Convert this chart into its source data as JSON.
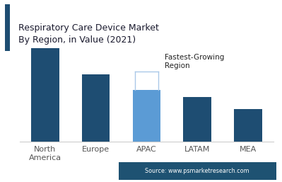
{
  "title_line1": "Respiratory Care Device Market",
  "title_line2": "By Region, in Value (2021)",
  "categories": [
    "North\nAmerica",
    "Europe",
    "APAC",
    "LATAM",
    "MEA"
  ],
  "values": [
    100,
    72,
    55,
    48,
    35
  ],
  "bar_colors": [
    "#1e4d72",
    "#1e4d72",
    "#5b9bd5",
    "#1e4d72",
    "#1e4d72"
  ],
  "annotation_text": "Fastest-Growing\nRegion",
  "annotation_bar_index": 2,
  "source_text": "Source: www.psmarketresearch.com",
  "background_color": "#ffffff",
  "title_accent_color": "#1e4d72",
  "source_bg_color": "#1e5272",
  "source_text_color": "#ffffff",
  "ylim": [
    0,
    118
  ],
  "bar_width": 0.55,
  "bracket_color": "#aac8e8"
}
